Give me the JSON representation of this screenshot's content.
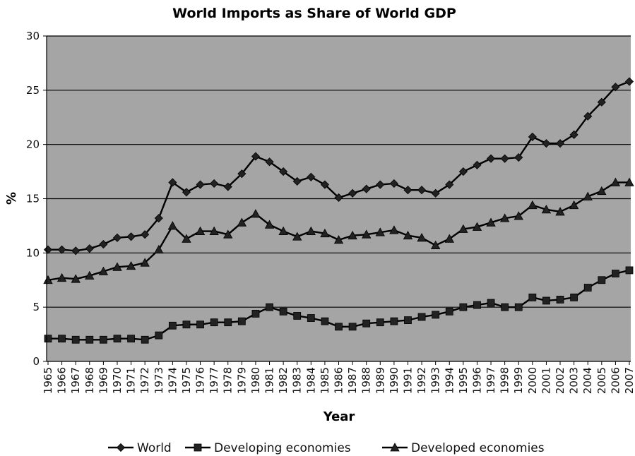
{
  "chart_data": {
    "type": "line",
    "title": "World Imports as Share of World GDP",
    "xlabel": "Year",
    "ylabel": "%",
    "ylim": [
      0,
      30
    ],
    "yticks": [
      0,
      5,
      10,
      15,
      20,
      25,
      30
    ],
    "grid": "horizontal",
    "legend_position": "bottom",
    "plot_background": "#a5a5a5",
    "categories": [
      "1965",
      "1966",
      "1967",
      "1968",
      "1969",
      "1970",
      "1971",
      "1972",
      "1973",
      "1974",
      "1975",
      "1976",
      "1977",
      "1978",
      "1979",
      "1980",
      "1981",
      "1982",
      "1983",
      "1984",
      "1985",
      "1986",
      "1987",
      "1988",
      "1989",
      "1990",
      "1991",
      "1992",
      "1993",
      "1994",
      "1995",
      "1996",
      "1997",
      "1998",
      "1999",
      "2000",
      "2001",
      "2002",
      "2003",
      "2004",
      "2005",
      "2006",
      "2007"
    ],
    "series": [
      {
        "name": "World",
        "marker": "diamond",
        "values": [
          10.3,
          10.3,
          10.2,
          10.4,
          10.8,
          11.4,
          11.5,
          11.7,
          13.2,
          16.5,
          15.6,
          16.3,
          16.4,
          16.1,
          17.3,
          18.9,
          18.4,
          17.5,
          16.6,
          17.0,
          16.3,
          15.1,
          15.5,
          15.9,
          16.3,
          16.4,
          15.8,
          15.8,
          15.5,
          16.3,
          17.5,
          18.1,
          18.7,
          18.7,
          18.8,
          20.7,
          20.1,
          20.1,
          20.9,
          22.6,
          23.9,
          25.3,
          25.8
        ]
      },
      {
        "name": "Developing economies",
        "marker": "square",
        "values": [
          2.1,
          2.1,
          2.0,
          2.0,
          2.0,
          2.1,
          2.1,
          2.0,
          2.4,
          3.3,
          3.4,
          3.4,
          3.6,
          3.6,
          3.7,
          4.4,
          5.0,
          4.6,
          4.2,
          4.0,
          3.7,
          3.2,
          3.2,
          3.5,
          3.6,
          3.7,
          3.8,
          4.1,
          4.3,
          4.6,
          5.0,
          5.2,
          5.4,
          5.0,
          5.0,
          5.9,
          5.6,
          5.7,
          5.9,
          6.8,
          7.5,
          8.1,
          8.4
        ]
      },
      {
        "name": "Developed economies",
        "marker": "triangle",
        "values": [
          7.5,
          7.7,
          7.6,
          7.9,
          8.3,
          8.7,
          8.8,
          9.1,
          10.3,
          12.5,
          11.3,
          12.0,
          12.0,
          11.7,
          12.8,
          13.6,
          12.6,
          12.0,
          11.5,
          12.0,
          11.8,
          11.2,
          11.6,
          11.7,
          11.9,
          12.1,
          11.6,
          11.4,
          10.7,
          11.3,
          12.2,
          12.4,
          12.8,
          13.2,
          13.4,
          14.4,
          14.0,
          13.8,
          14.4,
          15.2,
          15.7,
          16.5,
          16.5
        ]
      }
    ]
  }
}
